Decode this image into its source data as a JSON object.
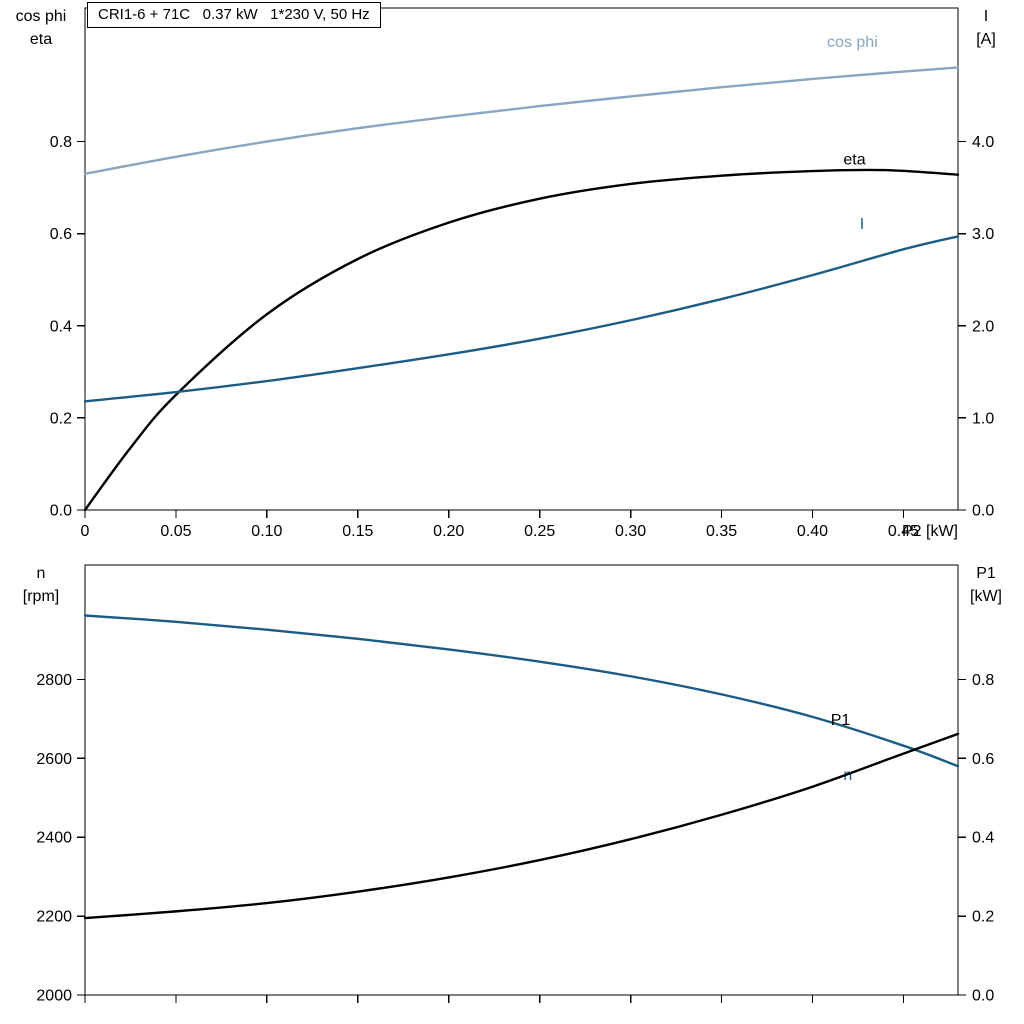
{
  "title_box": {
    "text": "CRI1-6 + 71C   0.37 kW   1*230 V, 50 Hz"
  },
  "colors": {
    "frame": "#000000",
    "text": "#000000",
    "cos_phi_series": "#88a5c4",
    "current_series": "#1b5c85",
    "black_series": "#000000"
  },
  "chart_data": [
    {
      "type": "line",
      "title": "CRI1-6 + 71C   0.37 kW   1*230 V, 50 Hz",
      "grid": false,
      "x_axis": {
        "label": "P2 [kW]",
        "range": [
          0,
          0.48
        ],
        "ticks": [
          0,
          0.05,
          0.1,
          0.15,
          0.2,
          0.25,
          0.3,
          0.35,
          0.4,
          0.45
        ],
        "tick_labels": [
          "0",
          "0.05",
          "0.10",
          "0.15",
          "0.20",
          "0.25",
          "0.30",
          "0.35",
          "0.40",
          "0.45"
        ],
        "show_tick_labels": true
      },
      "left_axis": {
        "label_lines": [
          "cos phi",
          "eta"
        ],
        "range": [
          0,
          1.09
        ],
        "ticks": [
          0,
          0.2,
          0.4,
          0.6,
          0.8
        ],
        "tick_labels": [
          "0.0",
          "0.2",
          "0.4",
          "0.6",
          "0.8"
        ]
      },
      "right_axis": {
        "label_lines": [
          "I",
          "[A]"
        ],
        "range": [
          0,
          5.45
        ],
        "ticks": [
          0,
          1,
          2,
          3,
          4
        ],
        "tick_labels": [
          "0.0",
          "1.0",
          "2.0",
          "3.0",
          "4.0"
        ]
      },
      "series": [
        {
          "name": "cos phi",
          "axis": "left",
          "color_key": "cos_phi_series",
          "label": "cos phi",
          "label_at": [
            0.408,
            1.005
          ],
          "x": [
            0,
            0.05,
            0.1,
            0.15,
            0.2,
            0.25,
            0.3,
            0.35,
            0.4,
            0.45,
            0.48
          ],
          "y": [
            0.73,
            0.767,
            0.8,
            0.829,
            0.854,
            0.877,
            0.898,
            0.918,
            0.936,
            0.952,
            0.961
          ]
        },
        {
          "name": "eta",
          "axis": "left",
          "color_key": "black_series",
          "label": "eta",
          "label_at": [
            0.417,
            0.75
          ],
          "x": [
            0,
            0.025,
            0.05,
            0.1,
            0.15,
            0.2,
            0.25,
            0.3,
            0.35,
            0.4,
            0.44,
            0.48
          ],
          "y": [
            0,
            0.135,
            0.25,
            0.425,
            0.545,
            0.624,
            0.676,
            0.708,
            0.726,
            0.736,
            0.738,
            0.728
          ]
        },
        {
          "name": "I",
          "axis": "right",
          "color_key": "current_series",
          "label": "I",
          "label_at": [
            0.426,
            3.05
          ],
          "x": [
            0,
            0.05,
            0.1,
            0.15,
            0.2,
            0.25,
            0.3,
            0.35,
            0.4,
            0.45,
            0.48
          ],
          "y": [
            1.18,
            1.28,
            1.4,
            1.54,
            1.69,
            1.86,
            2.06,
            2.29,
            2.55,
            2.83,
            2.97
          ]
        }
      ]
    },
    {
      "type": "line",
      "title": "",
      "grid": false,
      "x_axis": {
        "label": "",
        "range": [
          0,
          0.48
        ],
        "ticks": [
          0,
          0.05,
          0.1,
          0.15,
          0.2,
          0.25,
          0.3,
          0.35,
          0.4,
          0.45
        ],
        "tick_labels": [],
        "show_tick_labels": false
      },
      "left_axis": {
        "label_lines": [
          "n",
          "[rpm]"
        ],
        "range": [
          2000,
          3090
        ],
        "ticks": [
          2000,
          2200,
          2400,
          2600,
          2800
        ],
        "tick_labels": [
          "2000",
          "2200",
          "2400",
          "2600",
          "2800"
        ]
      },
      "right_axis": {
        "label_lines": [
          "P1",
          "[kW]"
        ],
        "range": [
          0,
          1.09
        ],
        "ticks": [
          0,
          0.2,
          0.4,
          0.6,
          0.8
        ],
        "tick_labels": [
          "0.0",
          "0.2",
          "0.4",
          "0.6",
          "0.8"
        ]
      },
      "series": [
        {
          "name": "n",
          "axis": "left",
          "color_key": "current_series",
          "label": "n",
          "label_at": [
            0.417,
            2545
          ],
          "x": [
            0,
            0.05,
            0.1,
            0.15,
            0.2,
            0.25,
            0.3,
            0.35,
            0.4,
            0.45,
            0.48
          ],
          "y": [
            2962,
            2946,
            2926,
            2903,
            2876,
            2845,
            2808,
            2762,
            2705,
            2632,
            2580
          ]
        },
        {
          "name": "P1",
          "axis": "right",
          "color_key": "black_series",
          "label": "P1",
          "label_at": [
            0.41,
            0.685
          ],
          "x": [
            0,
            0.05,
            0.1,
            0.15,
            0.2,
            0.25,
            0.3,
            0.35,
            0.4,
            0.45,
            0.48
          ],
          "y": [
            0.195,
            0.212,
            0.233,
            0.262,
            0.298,
            0.342,
            0.395,
            0.457,
            0.528,
            0.612,
            0.662
          ]
        }
      ]
    }
  ]
}
